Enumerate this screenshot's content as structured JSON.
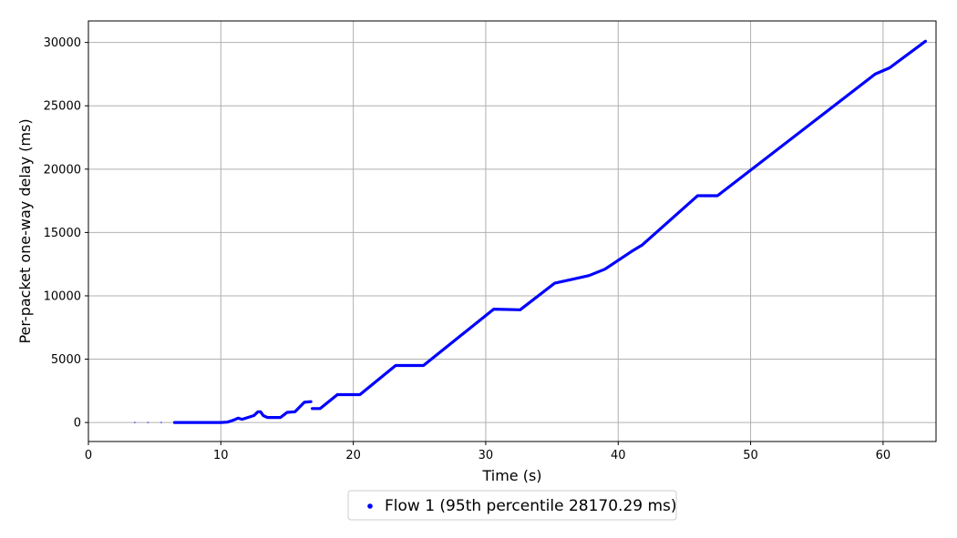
{
  "chart_data": {
    "type": "scatter",
    "xlabel": "Time (s)",
    "ylabel": "Per-packet one-way delay (ms)",
    "xlim": [
      0,
      64
    ],
    "ylim": [
      -1500,
      31700
    ],
    "xticks": [
      0,
      10,
      20,
      30,
      40,
      50,
      60
    ],
    "yticks": [
      0,
      5000,
      10000,
      15000,
      20000,
      25000,
      30000
    ],
    "grid": true,
    "legend_position": "bottom-center (below plot)",
    "series": [
      {
        "name": "Flow 1 (95th percentile 28170.29 ms)",
        "color": "#0000ff",
        "isolated_points": [
          [
            3.5,
            0
          ],
          [
            4.5,
            0
          ],
          [
            5.5,
            0
          ]
        ],
        "segments": [
          [
            [
              6.5,
              0
            ],
            [
              10,
              0
            ],
            [
              10.5,
              30
            ],
            [
              11,
              200
            ],
            [
              11.3,
              350
            ],
            [
              11.6,
              250
            ],
            [
              12.2,
              450
            ],
            [
              12.5,
              550
            ],
            [
              12.8,
              850
            ],
            [
              13.0,
              850
            ],
            [
              13.2,
              550
            ],
            [
              13.5,
              400
            ],
            [
              14.5,
              400
            ],
            [
              15,
              800
            ],
            [
              15.6,
              850
            ],
            [
              16.3,
              1600
            ],
            [
              16.8,
              1650
            ]
          ],
          [
            [
              16.9,
              1100
            ],
            [
              17.5,
              1100
            ],
            [
              18.8,
              2200
            ],
            [
              20.5,
              2200
            ],
            [
              23.2,
              4500
            ],
            [
              25.3,
              4500
            ],
            [
              30.6,
              8950
            ],
            [
              32.6,
              8900
            ],
            [
              35.2,
              11000
            ],
            [
              36.5,
              11300
            ],
            [
              37.8,
              11600
            ],
            [
              39,
              12100
            ],
            [
              41,
              13500
            ],
            [
              41.8,
              14000
            ],
            [
              46,
              17900
            ],
            [
              47.5,
              17900
            ],
            [
              59.4,
              27500
            ],
            [
              60.5,
              28000
            ],
            [
              63.2,
              30100
            ]
          ]
        ]
      }
    ]
  }
}
